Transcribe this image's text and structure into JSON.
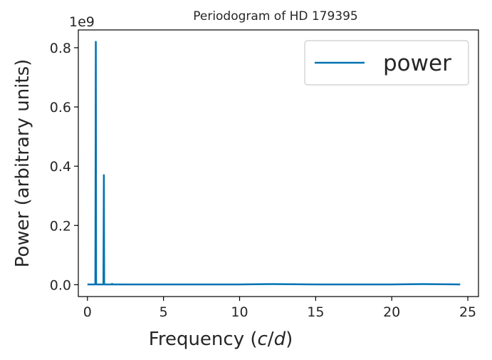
{
  "chart_data": {
    "type": "line",
    "title": "Periodogram of HD 179395",
    "xlabel": "Frequency (c/d)",
    "ylabel": "Power (arbitrary units)",
    "y_offset_label": "1e9",
    "xlim": [
      -0.6,
      25.7
    ],
    "ylim": [
      -0.04,
      0.86
    ],
    "y_scale_note": "values in units of 1e9",
    "xticks": [
      0,
      5,
      10,
      15,
      20,
      25
    ],
    "xtick_labels": [
      "0",
      "5",
      "10",
      "15",
      "20",
      "25"
    ],
    "yticks": [
      0.0,
      0.2,
      0.4,
      0.6,
      0.8
    ],
    "ytick_labels": [
      "0.0",
      "0.2",
      "0.4",
      "0.6",
      "0.8"
    ],
    "grid": false,
    "legend": {
      "position": "top-right",
      "entries": [
        "power"
      ]
    },
    "series": [
      {
        "name": "power",
        "color": "#0072b2",
        "x": [
          0.0,
          0.5,
          0.52,
          0.55,
          0.57,
          0.6,
          1.0,
          1.05,
          1.08,
          1.1,
          1.15,
          1.6,
          1.62,
          1.65,
          2.0,
          5.0,
          10.0,
          12.0,
          15.0,
          20.0,
          22.0,
          24.5
        ],
        "y": [
          0.001,
          0.001,
          0.001,
          0.82,
          0.001,
          0.001,
          0.001,
          0.001,
          0.37,
          0.001,
          0.001,
          0.001,
          0.003,
          0.001,
          0.001,
          0.001,
          0.001,
          0.002,
          0.001,
          0.001,
          0.002,
          0.001
        ]
      }
    ]
  }
}
